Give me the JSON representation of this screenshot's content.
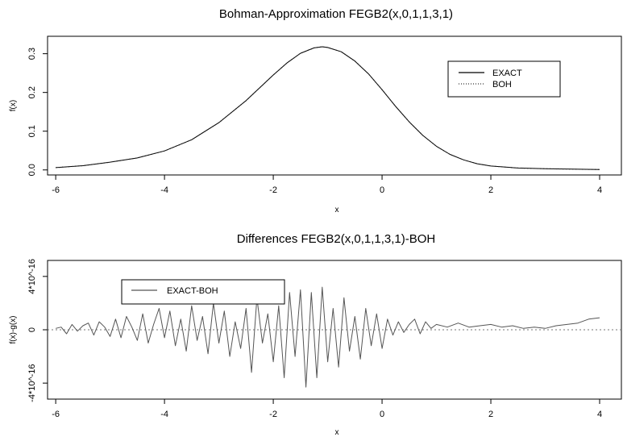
{
  "chart_data": [
    {
      "type": "line",
      "title": "Bohman-Approximation FEGB2(x,0,1,1,3,1)",
      "xlabel": "x",
      "ylabel": "f(x)",
      "xlim": [
        -6.15,
        4.4
      ],
      "ylim": [
        -0.013,
        0.345
      ],
      "xticks": [
        -6,
        -4,
        -2,
        0,
        2,
        4
      ],
      "xtick_labels": [
        "-6",
        "-4",
        "-2",
        "0",
        "2",
        "4"
      ],
      "yticks": [
        0.0,
        0.1,
        0.2,
        0.3
      ],
      "ytick_labels": [
        "0.0",
        "0.1",
        "0.2",
        "0.3"
      ],
      "grid": false,
      "legend_position": "top-right",
      "series": [
        {
          "name": "EXACT",
          "style": "solid",
          "color": "#000000",
          "x": [
            -6,
            -5.5,
            -5,
            -4.5,
            -4,
            -3.5,
            -3,
            -2.5,
            -2,
            -1.75,
            -1.5,
            -1.25,
            -1.1,
            -1,
            -0.75,
            -0.5,
            -0.25,
            0,
            0.25,
            0.5,
            0.75,
            1,
            1.25,
            1.5,
            1.75,
            2,
            2.5,
            3,
            3.5,
            4
          ],
          "y": [
            0.006,
            0.011,
            0.02,
            0.031,
            0.049,
            0.078,
            0.122,
            0.179,
            0.245,
            0.276,
            0.301,
            0.315,
            0.318,
            0.316,
            0.305,
            0.281,
            0.248,
            0.207,
            0.164,
            0.124,
            0.089,
            0.061,
            0.04,
            0.026,
            0.016,
            0.01,
            0.005,
            0.003,
            0.002,
            0.001
          ]
        },
        {
          "name": "BOH",
          "style": "dotted",
          "color": "#000000",
          "x": [
            -6,
            -5.5,
            -5,
            -4.5,
            -4,
            -3.5,
            -3,
            -2.5,
            -2,
            -1.75,
            -1.5,
            -1.25,
            -1.1,
            -1,
            -0.75,
            -0.5,
            -0.25,
            0,
            0.25,
            0.5,
            0.75,
            1,
            1.25,
            1.5,
            1.75,
            2,
            2.5,
            3,
            3.5,
            4
          ],
          "y": [
            0.006,
            0.011,
            0.02,
            0.031,
            0.049,
            0.078,
            0.122,
            0.179,
            0.245,
            0.276,
            0.301,
            0.315,
            0.318,
            0.316,
            0.305,
            0.281,
            0.248,
            0.207,
            0.164,
            0.124,
            0.089,
            0.061,
            0.04,
            0.026,
            0.016,
            0.01,
            0.005,
            0.003,
            0.002,
            0.001
          ]
        }
      ]
    },
    {
      "type": "line",
      "title": "Differences FEGB2(x,0,1,1,3,1)-BOH",
      "xlabel": "x",
      "ylabel": "f(x)-g(x)",
      "xlim": [
        -6.15,
        4.4
      ],
      "ylim": [
        -5.2e-16,
        5.2e-16
      ],
      "xticks": [
        -6,
        -4,
        -2,
        0,
        2,
        4
      ],
      "xtick_labels": [
        "-6",
        "-4",
        "-2",
        "0",
        "2",
        "4"
      ],
      "yticks": [
        -4e-16,
        0,
        4e-16
      ],
      "ytick_labels": [
        "-4*10^-16",
        "0",
        "4*10^-16"
      ],
      "grid": false,
      "legend_position": "top-left",
      "reference_line": {
        "y": 0,
        "style": "dotted"
      },
      "series": [
        {
          "name": "EXACT-BOH",
          "style": "solid",
          "color": "#555555",
          "x": [
            -6,
            -5.9,
            -5.8,
            -5.7,
            -5.6,
            -5.5,
            -5.4,
            -5.3,
            -5.2,
            -5.1,
            -5,
            -4.9,
            -4.8,
            -4.7,
            -4.6,
            -4.5,
            -4.4,
            -4.3,
            -4.2,
            -4.1,
            -4,
            -3.9,
            -3.8,
            -3.7,
            -3.6,
            -3.5,
            -3.4,
            -3.3,
            -3.2,
            -3.1,
            -3,
            -2.9,
            -2.8,
            -2.7,
            -2.6,
            -2.5,
            -2.4,
            -2.3,
            -2.2,
            -2.1,
            -2,
            -1.9,
            -1.8,
            -1.7,
            -1.6,
            -1.5,
            -1.4,
            -1.3,
            -1.2,
            -1.1,
            -1,
            -0.9,
            -0.8,
            -0.7,
            -0.6,
            -0.5,
            -0.4,
            -0.3,
            -0.2,
            -0.1,
            0,
            0.1,
            0.2,
            0.3,
            0.4,
            0.5,
            0.6,
            0.7,
            0.8,
            0.9,
            1,
            1.2,
            1.4,
            1.6,
            1.8,
            2,
            2.2,
            2.4,
            2.6,
            2.8,
            3,
            3.2,
            3.4,
            3.6,
            3.8,
            4
          ],
          "y": [
            1e-17,
            2e-17,
            -3e-17,
            4e-17,
            -1e-17,
            3e-17,
            5e-17,
            -4e-17,
            6e-17,
            2e-17,
            -5e-17,
            8e-17,
            -6e-17,
            1e-16,
            2e-17,
            -8e-17,
            1.2e-16,
            -1e-16,
            4e-17,
            1.6e-16,
            -6e-17,
            1.4e-16,
            -1.2e-16,
            8e-17,
            -1.6e-16,
            1.8e-16,
            -8e-17,
            1e-16,
            -1.8e-16,
            2e-16,
            -1e-16,
            1.4e-16,
            -2e-16,
            6e-17,
            -1.4e-16,
            1.6e-16,
            -3.2e-16,
            2.4e-16,
            -1e-16,
            1.2e-16,
            -2.4e-16,
            1.8e-16,
            -3.6e-16,
            2.8e-16,
            -2e-16,
            3e-16,
            -4.3e-16,
            2.8e-16,
            -3.6e-16,
            3.2e-16,
            -2.4e-16,
            1.6e-16,
            -2.8e-16,
            2.4e-16,
            -1.6e-16,
            1e-16,
            -2.2e-16,
            1.6e-16,
            -1.2e-16,
            1.2e-16,
            -1.4e-16,
            8e-17,
            -4e-17,
            6e-17,
            -2e-17,
            4e-17,
            8e-17,
            -3e-17,
            6e-17,
            1e-17,
            4e-17,
            2e-17,
            5e-17,
            2e-17,
            3e-17,
            4e-17,
            2e-17,
            3e-17,
            1e-17,
            2e-17,
            1e-17,
            3e-17,
            4e-17,
            5e-17,
            8e-17,
            9e-17
          ]
        }
      ]
    }
  ]
}
